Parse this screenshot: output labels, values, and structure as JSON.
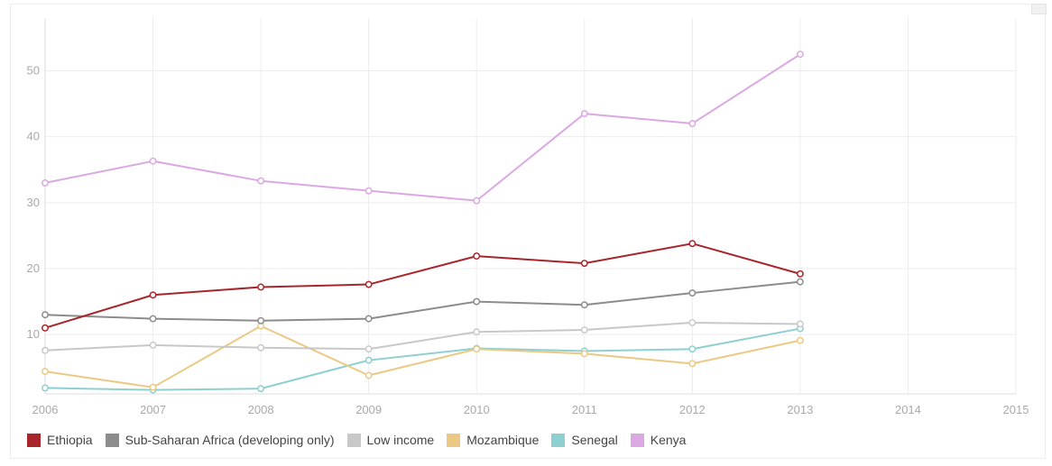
{
  "chart_data": {
    "type": "line",
    "x": [
      2006,
      2007,
      2008,
      2009,
      2010,
      2011,
      2012,
      2013
    ],
    "x_ticks": [
      "2006",
      "2007",
      "2008",
      "2009",
      "2010",
      "2011",
      "2012",
      "2013",
      "2014",
      "2015"
    ],
    "xlim": [
      2006,
      2015
    ],
    "y_ticks": [
      "10",
      "20",
      "30",
      "40",
      "50"
    ],
    "ylim": [
      1,
      58
    ],
    "grid": true,
    "legend_position": "bottom-left",
    "series": [
      {
        "name": "Ethiopia",
        "color": "#a8252c",
        "values": [
          11.0,
          16.0,
          17.2,
          17.6,
          21.9,
          20.8,
          23.8,
          19.2
        ]
      },
      {
        "name": "Sub-Saharan Africa (developing only)",
        "color": "#8c8c8c",
        "values": [
          13.0,
          12.4,
          12.1,
          12.4,
          15.0,
          14.5,
          16.3,
          18.0
        ]
      },
      {
        "name": "Low income",
        "color": "#c8c8c8",
        "values": [
          7.6,
          8.4,
          8.0,
          7.8,
          10.4,
          10.7,
          11.8,
          11.6
        ]
      },
      {
        "name": "Mozambique",
        "color": "#ebc984",
        "values": [
          4.4,
          2.0,
          11.3,
          3.8,
          7.8,
          7.1,
          5.6,
          9.1
        ]
      },
      {
        "name": "Senegal",
        "color": "#8ecfcf",
        "values": [
          1.9,
          1.6,
          1.8,
          6.1,
          7.9,
          7.5,
          7.8,
          10.9
        ]
      },
      {
        "name": "Kenya",
        "color": "#dba8e3",
        "values": [
          33.0,
          36.3,
          33.3,
          31.8,
          30.3,
          43.5,
          42.0,
          52.5
        ]
      }
    ]
  }
}
